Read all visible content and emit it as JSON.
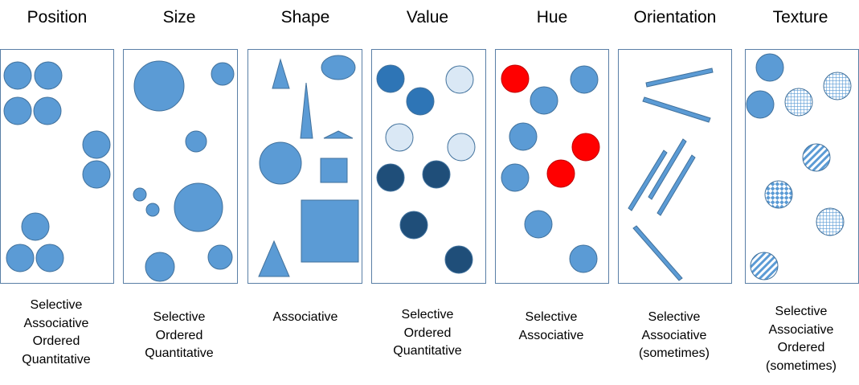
{
  "colors": {
    "shape_fill": "#5b9bd5",
    "shape_stroke": "#41719c",
    "panel_border": "#5a7fa6",
    "value_dark": "#1f4e79",
    "value_mid": "#2e75b6",
    "value_light": "#dae8f5",
    "hue_red": "#ff0000"
  },
  "variables": [
    {
      "title": "Position",
      "properties": [
        "Selective",
        "Associative",
        "Ordered",
        "Quantitative"
      ]
    },
    {
      "title": "Size",
      "properties": [
        "Selective",
        "Ordered",
        "Quantitative"
      ]
    },
    {
      "title": "Shape",
      "properties": [
        "Associative"
      ]
    },
    {
      "title": "Value",
      "properties": [
        "Selective",
        "Ordered",
        "Quantitative"
      ]
    },
    {
      "title": "Hue",
      "properties": [
        "Selective",
        "Associative"
      ]
    },
    {
      "title": "Orientation",
      "properties": [
        "Selective",
        "Associative",
        "(sometimes)"
      ]
    },
    {
      "title": "Texture",
      "properties": [
        "Selective",
        "Associative",
        "Ordered",
        "(sometimes)"
      ]
    }
  ]
}
